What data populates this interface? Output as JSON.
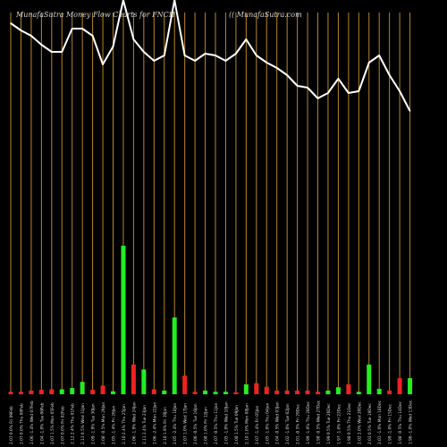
{
  "header": {
    "title": "MunafaSutra  Money Flow  Charts for FNCH",
    "site": "(( MunafaSutra.com"
  },
  "colors": {
    "background": "#000000",
    "line": "#ffffff",
    "grid": "#b8862b",
    "up": "#22ee22",
    "down": "#ee2222"
  },
  "chart_data": {
    "type": "bar+line",
    "title": "MunafaSutra  Money Flow  Charts for FNCH",
    "categories": [
      "Fri 09Feb",
      "Thu 08Feb",
      "Wed 07Feb",
      "Tue 06Feb",
      "Mon 05Feb",
      "Fri 02Feb",
      "Thu 01Feb",
      "Wed 31Jan",
      "Tue 30Jan",
      "Mon 29Jan",
      "Fri 26Jan",
      "Thu 25Jan",
      "Wed 24Jan",
      "Tue 23Jan",
      "Mon 22Jan",
      "Fri 19Jan",
      "Thu 18Jan",
      "Wed 17Jan",
      "Tue 16Jan",
      "Fri 12Jan",
      "Thu 11Jan",
      "Wed 10Jan",
      "Tue 09Jan",
      "Mon 08Jan",
      "Fri 05Jan",
      "Thu 04Jan",
      "Wed 03Jan",
      "Tue 02Jan",
      "Fri 29Dec",
      "Thu 28Dec",
      "Wed 27Dec",
      "Tue 26Dec",
      "Fri 22Dec",
      "Thu 21Dec",
      "Wed 20Dec",
      "Tue 19Dec",
      "Mon 18Dec",
      "Fri 15Dec",
      "Thu 14Dec",
      "Wed 13Dec"
    ],
    "tick_labels": [
      "2.07 0.0%",
      "2.07 0.0%",
      "2.06 -1.4%",
      "2.04 -1.0%",
      "2.07 1.5%",
      "2.07 0.0%",
      "2.12 2.4%",
      "2.13 0.5%",
      "2.09 -1.9%",
      "2.08 -0.5%",
      "2.05 -1.4%",
      "2.10 2.4%",
      "2.06 -1.9%",
      "2.11 2.4%",
      "2.06 -2.4%",
      "2.10 1.9%",
      "2.05 -2.4%",
      "2.07 1.0%",
      "2.06 -0.5%",
      "2.08 1.0%",
      "2.07 -0.5%",
      "2.05 -1.0%",
      "2.08 1.5%",
      "2.10 1.0%",
      "2.07 -1.4%",
      "2.05 -1.0%",
      "2.04 -0.5%",
      "2.02 -1.0%",
      "2.01 -0.5%",
      "1.99 -1.0%",
      "1.98 -0.5%",
      "1.99 0.5%",
      "1.97 -1.0%",
      "1.98 0.5%",
      "2.02 2.0%",
      "2.03 0.5%",
      "2.01 -1.0%",
      "1.99 -1.0%",
      "1.98 -0.5%",
      "1.96 -1.0%"
    ],
    "price_line": [
      87,
      83,
      80,
      75,
      71,
      71,
      84,
      84,
      80,
      64,
      74,
      100,
      78,
      71,
      66,
      69,
      100,
      69,
      66,
      70,
      69,
      66,
      70,
      78,
      69,
      65,
      62,
      58,
      52,
      51,
      45,
      48,
      56,
      48,
      49,
      65,
      69,
      58,
      49,
      38
    ],
    "volume": [
      1,
      1,
      1.5,
      1.8,
      2,
      2,
      2.5,
      5,
      1.8,
      3.5,
      1.2,
      60,
      12,
      10,
      2,
      1.5,
      31,
      7.5,
      1,
      1.5,
      1,
      1,
      0.8,
      4,
      4.5,
      3,
      1.5,
      1.5,
      1.5,
      1.5,
      1,
      1.5,
      2.8,
      4,
      1,
      12,
      2.2,
      1.5,
      6.5,
      6.5
    ],
    "volume_dir": [
      "down",
      "down",
      "down",
      "down",
      "down",
      "up",
      "up",
      "up",
      "down",
      "down",
      "up",
      "up",
      "down",
      "up",
      "down",
      "up",
      "up",
      "down",
      "down",
      "up",
      "up",
      "up",
      "down",
      "up",
      "down",
      "down",
      "down",
      "down",
      "down",
      "down",
      "down",
      "up",
      "up",
      "down",
      "up",
      "up",
      "up",
      "down",
      "down",
      "up"
    ],
    "price_range": [
      0,
      100
    ],
    "volume_range": [
      0,
      65
    ],
    "grid": true
  }
}
